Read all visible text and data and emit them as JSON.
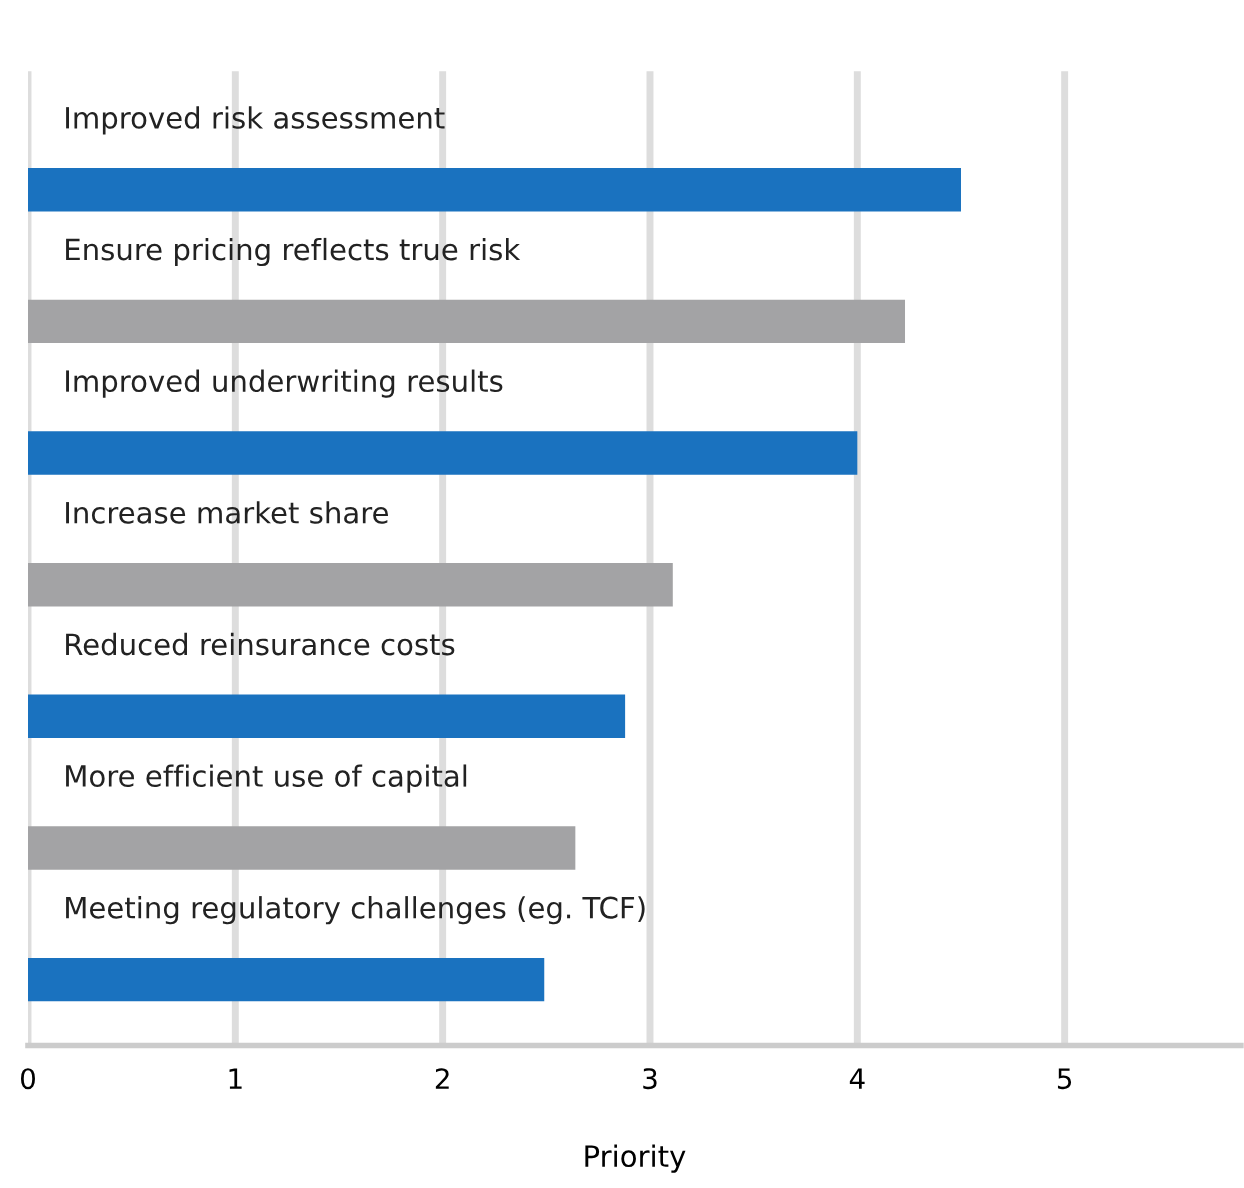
{
  "chart_data": {
    "type": "bar",
    "orientation": "horizontal",
    "xlabel": "Priority",
    "categories": [
      "Improved risk assessment",
      "Ensure pricing reflects true risk",
      "Improved underwriting results",
      "Increase market share",
      "Reduced reinsurance costs",
      "More efficient use of capital",
      "Meeting regulatory challenges (eg. TCF)"
    ],
    "values": [
      4.5,
      4.23,
      4.0,
      3.11,
      2.88,
      2.64,
      2.49
    ],
    "colors": [
      "#1a72bf",
      "#a3a3a5",
      "#1a72bf",
      "#a3a3a5",
      "#1a72bf",
      "#a3a3a5",
      "#1a72bf"
    ],
    "xlim": [
      0,
      5.85
    ],
    "xticks": [
      0,
      1,
      2,
      3,
      4,
      5
    ],
    "grid": "x",
    "legend": false
  }
}
